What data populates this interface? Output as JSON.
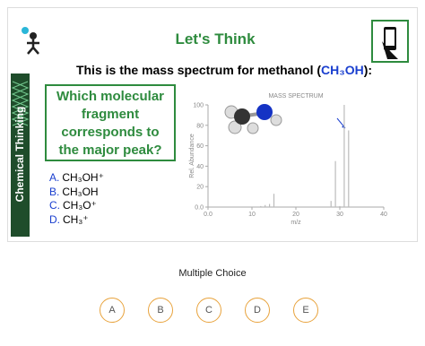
{
  "slide": {
    "sidebar": "Chemical Thinking",
    "title": "Let's Think",
    "intro": [
      "This is the mass spectrum for methanol (",
      "CH₃OH",
      "):"
    ],
    "question": "Which molecular fragment corresponds to the major peak?",
    "options": [
      {
        "letter": "A.",
        "text": "CH₃OH⁺"
      },
      {
        "letter": "B.",
        "text": "CH₃OH"
      },
      {
        "letter": "C.",
        "text": "CH₃O⁺"
      },
      {
        "letter": "D.",
        "text": "CH₃⁺"
      }
    ]
  },
  "spectrum": {
    "type": "bar",
    "title": "MASS SPECTRUM",
    "xlabel": "m/z",
    "ylabel": "Rel. Abundance",
    "x": [
      12,
      13,
      14,
      15,
      28,
      29,
      30,
      31,
      32
    ],
    "values": [
      1,
      2,
      3,
      13,
      6,
      45,
      1,
      100,
      75
    ],
    "color": "#bbbbbb",
    "xlim": [
      0,
      40
    ],
    "ylim": [
      0,
      100
    ],
    "xticks": [
      {
        "value": 0,
        "label": "0.0"
      },
      10,
      20,
      30,
      40
    ],
    "yticks": [
      {
        "value": 0,
        "label": "0.0"
      },
      20,
      40,
      60,
      80,
      100
    ]
  },
  "quiz": {
    "label": "Multiple Choice",
    "choices": [
      "A",
      "B",
      "C",
      "D",
      "E"
    ]
  }
}
